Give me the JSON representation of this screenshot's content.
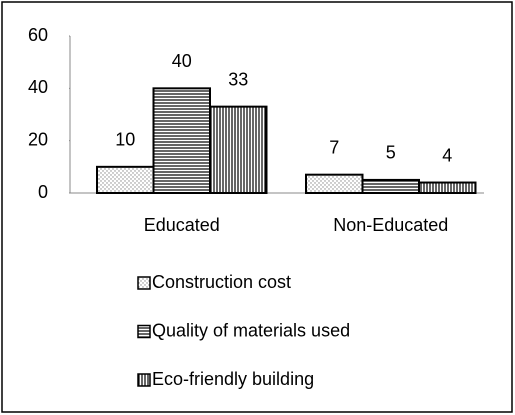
{
  "chart_data": {
    "type": "bar",
    "categories": [
      "Educated",
      "Non-Educated"
    ],
    "series": [
      {
        "name": "Construction cost",
        "color": "#000000",
        "pattern": "dots",
        "values": [
          10,
          7
        ]
      },
      {
        "name": "Quality of materials used",
        "color": "#000000",
        "pattern": "hlines",
        "values": [
          40,
          5
        ]
      },
      {
        "name": "Eco-friendly building",
        "color": "#000000",
        "pattern": "vlines",
        "values": [
          33,
          4
        ]
      }
    ],
    "ylim": [
      0,
      60
    ],
    "yticks": [
      0,
      20,
      40,
      60
    ],
    "grid": false,
    "legend": "bottom"
  }
}
